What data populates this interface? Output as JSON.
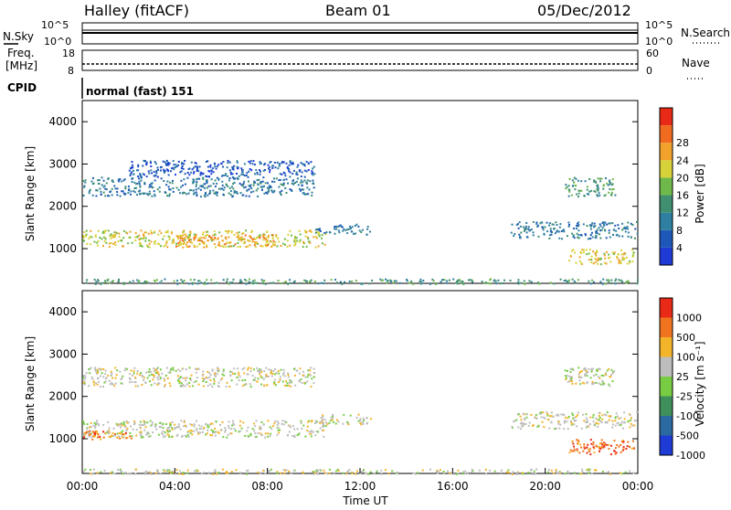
{
  "header": {
    "station": "Halley (fitACF)",
    "beam": "Beam 01",
    "date": "05/Dec/2012"
  },
  "strip_panels": {
    "noise": {
      "left_label": "N.Sky",
      "right_label": "N.Search",
      "left_ticks": [
        "10^5",
        "10^0"
      ],
      "right_ticks": [
        "10^5",
        "10^0"
      ]
    },
    "freq": {
      "left_label": "Freq.",
      "left_unit": "[MHz]",
      "right_label": "Nave",
      "left_ticks": [
        "18",
        "8"
      ],
      "right_ticks": [
        "60",
        "0"
      ]
    },
    "cpid": {
      "label": "CPID",
      "value": "normal (fast) 151"
    }
  },
  "chart_data": [
    {
      "type": "heatmap",
      "name": "power",
      "ylabel": "Slant Range [km]",
      "xlabel": "",
      "xlim_hours": [
        0,
        24
      ],
      "ylim_km": [
        180,
        4500
      ],
      "yticks": [
        "1000",
        "2000",
        "3000",
        "4000"
      ],
      "colorbar": {
        "label": "Power [dB]",
        "ticks": [
          "4",
          "8",
          "12",
          "16",
          "20",
          "24",
          "28"
        ],
        "colors": [
          "#1f3bd6",
          "#1d58b8",
          "#2f7fa0",
          "#3f8f70",
          "#6fb84a",
          "#d7d23a",
          "#f2a12a",
          "#f06a1f",
          "#e82a17"
        ]
      },
      "echo_regions": [
        {
          "t0": 0.0,
          "t1": 10.5,
          "r0": 1050,
          "r1": 1450,
          "level": 5
        },
        {
          "t0": 0.0,
          "t1": 10.0,
          "r0": 2250,
          "r1": 2700,
          "level": 2
        },
        {
          "t0": 2.0,
          "t1": 10.0,
          "r0": 2700,
          "r1": 3100,
          "level": 1
        },
        {
          "t0": 4.0,
          "t1": 8.5,
          "r0": 1050,
          "r1": 1350,
          "level": 6
        },
        {
          "t0": 10.0,
          "t1": 12.5,
          "r0": 1350,
          "r1": 1600,
          "level": 2
        },
        {
          "t0": 18.5,
          "t1": 24.0,
          "r0": 1250,
          "r1": 1650,
          "level": 2
        },
        {
          "t0": 21.0,
          "t1": 23.8,
          "r0": 650,
          "r1": 1000,
          "level": 5
        },
        {
          "t0": 20.8,
          "t1": 23.0,
          "r0": 2250,
          "r1": 2700,
          "level": 3
        },
        {
          "t0": 0.0,
          "t1": 24.0,
          "r0": 180,
          "r1": 300,
          "level": 3
        }
      ]
    },
    {
      "type": "heatmap",
      "name": "velocity",
      "ylabel": "Slant Range [km]",
      "xlabel": "Time UT",
      "xlim_hours": [
        0,
        24
      ],
      "ylim_km": [
        180,
        4500
      ],
      "yticks": [
        "1000",
        "2000",
        "3000",
        "4000"
      ],
      "xticks": [
        "00:00",
        "04:00",
        "08:00",
        "12:00",
        "16:00",
        "20:00",
        "00:00"
      ],
      "colorbar": {
        "label": "Velocity [m s⁻¹]",
        "ticks": [
          "1000",
          "500",
          "100",
          "25",
          "-25",
          "-100",
          "-500",
          "-1000"
        ],
        "colors": [
          "#1f3bd6",
          "#2b6aa0",
          "#3f8f5a",
          "#77cc44",
          "#bdbdbd",
          "#f4b42a",
          "#f0741f",
          "#e82a17"
        ]
      },
      "echo_regions": [
        {
          "t0": 0.0,
          "t1": 10.5,
          "r0": 1050,
          "r1": 1450,
          "level": 4
        },
        {
          "t0": 0.0,
          "t1": 2.2,
          "r0": 1000,
          "r1": 1200,
          "level": 6
        },
        {
          "t0": 0.0,
          "t1": 10.0,
          "r0": 2250,
          "r1": 2700,
          "level": 4
        },
        {
          "t0": 10.0,
          "t1": 12.5,
          "r0": 1350,
          "r1": 1600,
          "level": 4
        },
        {
          "t0": 18.5,
          "t1": 24.0,
          "r0": 1250,
          "r1": 1650,
          "level": 4
        },
        {
          "t0": 21.0,
          "t1": 23.8,
          "r0": 650,
          "r1": 1000,
          "level": 6
        },
        {
          "t0": 20.8,
          "t1": 23.0,
          "r0": 2250,
          "r1": 2700,
          "level": 4
        },
        {
          "t0": 0.0,
          "t1": 24.0,
          "r0": 180,
          "r1": 300,
          "level": 4
        }
      ]
    }
  ]
}
